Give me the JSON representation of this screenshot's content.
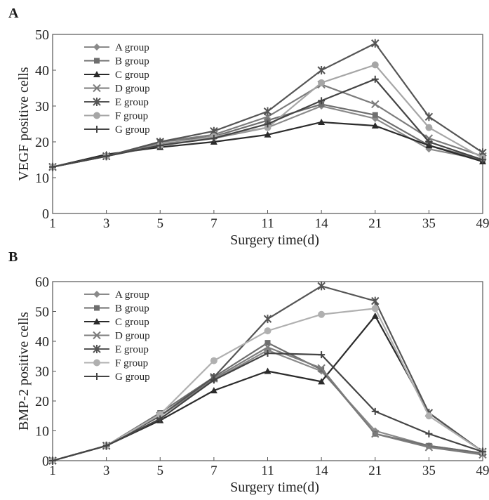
{
  "panels": [
    {
      "label": "A"
    },
    {
      "label": "B"
    }
  ],
  "chart_data": [
    {
      "type": "line",
      "panel": "A",
      "title": "",
      "xlabel": "Surgery time(d)",
      "ylabel": "VEGF positive cells",
      "categories": [
        "1",
        "3",
        "5",
        "7",
        "11",
        "14",
        "21",
        "35",
        "49"
      ],
      "ylim": [
        0,
        50
      ],
      "yticks": [
        0,
        10,
        20,
        30,
        40,
        50
      ],
      "grid": false,
      "legend_position": "top-left",
      "series": [
        {
          "name": "A group",
          "marker": "diamond",
          "color": "#8a8a8a",
          "values": [
            13,
            16,
            19.5,
            21,
            24,
            30,
            26.5,
            18,
            15
          ]
        },
        {
          "name": "B group",
          "marker": "square",
          "color": "#6e6e6e",
          "values": [
            13,
            16,
            20,
            21.5,
            26,
            30.5,
            27.5,
            19,
            15
          ]
        },
        {
          "name": "C group",
          "marker": "triangle",
          "color": "#2b2b2b",
          "values": [
            13,
            16.5,
            18.5,
            20,
            22,
            25.5,
            24.5,
            19,
            14.5
          ]
        },
        {
          "name": "D group",
          "marker": "x",
          "color": "#7c7c7c",
          "values": [
            13,
            16,
            20,
            22,
            27,
            36,
            30.5,
            21,
            16
          ]
        },
        {
          "name": "E group",
          "marker": "star",
          "color": "#555555",
          "values": [
            13,
            16,
            20,
            23,
            28.5,
            40,
            47.5,
            27,
            17
          ]
        },
        {
          "name": "F group",
          "marker": "circle",
          "color": "#a6a6a6",
          "values": [
            13,
            16,
            19,
            21.5,
            24,
            36.5,
            41.5,
            24,
            15.5
          ]
        },
        {
          "name": "G group",
          "marker": "plus",
          "color": "#444444",
          "values": [
            13,
            16,
            19,
            21,
            25,
            31.5,
            37.5,
            20,
            15
          ]
        }
      ]
    },
    {
      "type": "line",
      "panel": "B",
      "title": "",
      "xlabel": "Surgery time(d)",
      "ylabel": "BMP-2 positive cells",
      "categories": [
        "1",
        "3",
        "5",
        "7",
        "11",
        "14",
        "21",
        "35",
        "49"
      ],
      "ylim": [
        0,
        60
      ],
      "yticks": [
        0,
        10,
        20,
        30,
        40,
        50,
        60
      ],
      "grid": false,
      "legend_position": "top-left",
      "series": [
        {
          "name": "A group",
          "marker": "diamond",
          "color": "#8a8a8a",
          "values": [
            0,
            5,
            15,
            27,
            37,
            30,
            10,
            5,
            2.5
          ]
        },
        {
          "name": "B group",
          "marker": "square",
          "color": "#6e6e6e",
          "values": [
            0,
            5,
            16,
            28,
            39.5,
            30.5,
            9,
            5,
            2.5
          ]
        },
        {
          "name": "C group",
          "marker": "triangle",
          "color": "#2b2b2b",
          "values": [
            0,
            5,
            13.5,
            23.5,
            30,
            26.5,
            48.5,
            16,
            3
          ]
        },
        {
          "name": "D group",
          "marker": "x",
          "color": "#7c7c7c",
          "values": [
            0,
            5,
            15,
            27.5,
            38,
            31,
            9,
            4.5,
            2
          ]
        },
        {
          "name": "E group",
          "marker": "star",
          "color": "#555555",
          "values": [
            0,
            5,
            15,
            28,
            47.5,
            58.5,
            53.5,
            16,
            3
          ]
        },
        {
          "name": "F group",
          "marker": "circle",
          "color": "#b0b0b0",
          "values": [
            0,
            5,
            15.5,
            33.5,
            43.5,
            49,
            51,
            15,
            3
          ]
        },
        {
          "name": "G group",
          "marker": "plus",
          "color": "#444444",
          "values": [
            0,
            5,
            14,
            27,
            36,
            35.5,
            16.5,
            9,
            3
          ]
        }
      ]
    }
  ]
}
